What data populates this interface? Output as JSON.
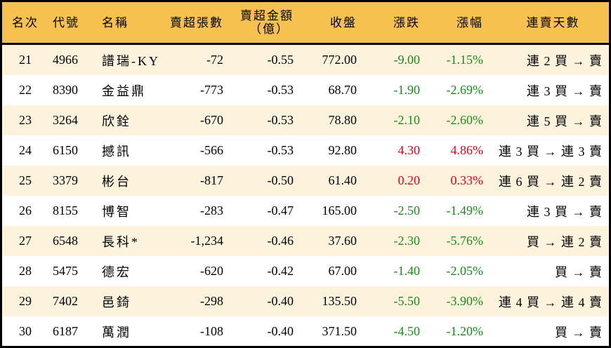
{
  "headers": {
    "rank": "名次",
    "code": "代號",
    "name": "名稱",
    "sell_lots": "賣超張數",
    "sell_amount": "賣超金額",
    "sell_amount_unit": "（億）",
    "close": "收盤",
    "change": "漲跌",
    "pct": "漲幅",
    "streak": "連賣天數"
  },
  "colors": {
    "header": "#f6c14f",
    "odd_row": "#fdf3dc",
    "up": "#e8001c",
    "down": "#1a8a1a"
  },
  "rows": [
    {
      "rank": "21",
      "code": "4966",
      "name": "譜瑞-KY",
      "sell_lots": "-72",
      "sell_amount": "-0.55",
      "close": "772.00",
      "change": "-9.00",
      "pct": "-1.15%",
      "dir": "down",
      "streak": "連 2 買 → 賣"
    },
    {
      "rank": "22",
      "code": "8390",
      "name": "金益鼎",
      "sell_lots": "-773",
      "sell_amount": "-0.53",
      "close": "68.70",
      "change": "-1.90",
      "pct": "-2.69%",
      "dir": "down",
      "streak": "連 3 買 → 賣"
    },
    {
      "rank": "23",
      "code": "3264",
      "name": "欣銓",
      "sell_lots": "-670",
      "sell_amount": "-0.53",
      "close": "78.80",
      "change": "-2.10",
      "pct": "-2.60%",
      "dir": "down",
      "streak": "連 5 買 → 賣"
    },
    {
      "rank": "24",
      "code": "6150",
      "name": "撼訊",
      "sell_lots": "-566",
      "sell_amount": "-0.53",
      "close": "92.80",
      "change": "4.30",
      "pct": "4.86%",
      "dir": "up",
      "streak": "連 3 買 → 連 3 賣"
    },
    {
      "rank": "25",
      "code": "3379",
      "name": "彬台",
      "sell_lots": "-817",
      "sell_amount": "-0.50",
      "close": "61.40",
      "change": "0.20",
      "pct": "0.33%",
      "dir": "up",
      "streak": "連 6 買 → 連 2 賣"
    },
    {
      "rank": "26",
      "code": "8155",
      "name": "博智",
      "sell_lots": "-283",
      "sell_amount": "-0.47",
      "close": "165.00",
      "change": "-2.50",
      "pct": "-1.49%",
      "dir": "down",
      "streak": "連 3 買 → 賣"
    },
    {
      "rank": "27",
      "code": "6548",
      "name": "長科*",
      "sell_lots": "-1,234",
      "sell_amount": "-0.46",
      "close": "37.60",
      "change": "-2.30",
      "pct": "-5.76%",
      "dir": "down",
      "streak": "買 → 連 2 賣"
    },
    {
      "rank": "28",
      "code": "5475",
      "name": "德宏",
      "sell_lots": "-620",
      "sell_amount": "-0.42",
      "close": "67.00",
      "change": "-1.40",
      "pct": "-2.05%",
      "dir": "down",
      "streak": "買 → 賣"
    },
    {
      "rank": "29",
      "code": "7402",
      "name": "邑錡",
      "sell_lots": "-298",
      "sell_amount": "-0.40",
      "close": "135.50",
      "change": "-5.50",
      "pct": "-3.90%",
      "dir": "down",
      "streak": "連 4 買 → 連 4 賣"
    },
    {
      "rank": "30",
      "code": "6187",
      "name": "萬潤",
      "sell_lots": "-108",
      "sell_amount": "-0.40",
      "close": "371.50",
      "change": "-4.50",
      "pct": "-1.20%",
      "dir": "down",
      "streak": "買 → 賣"
    }
  ]
}
